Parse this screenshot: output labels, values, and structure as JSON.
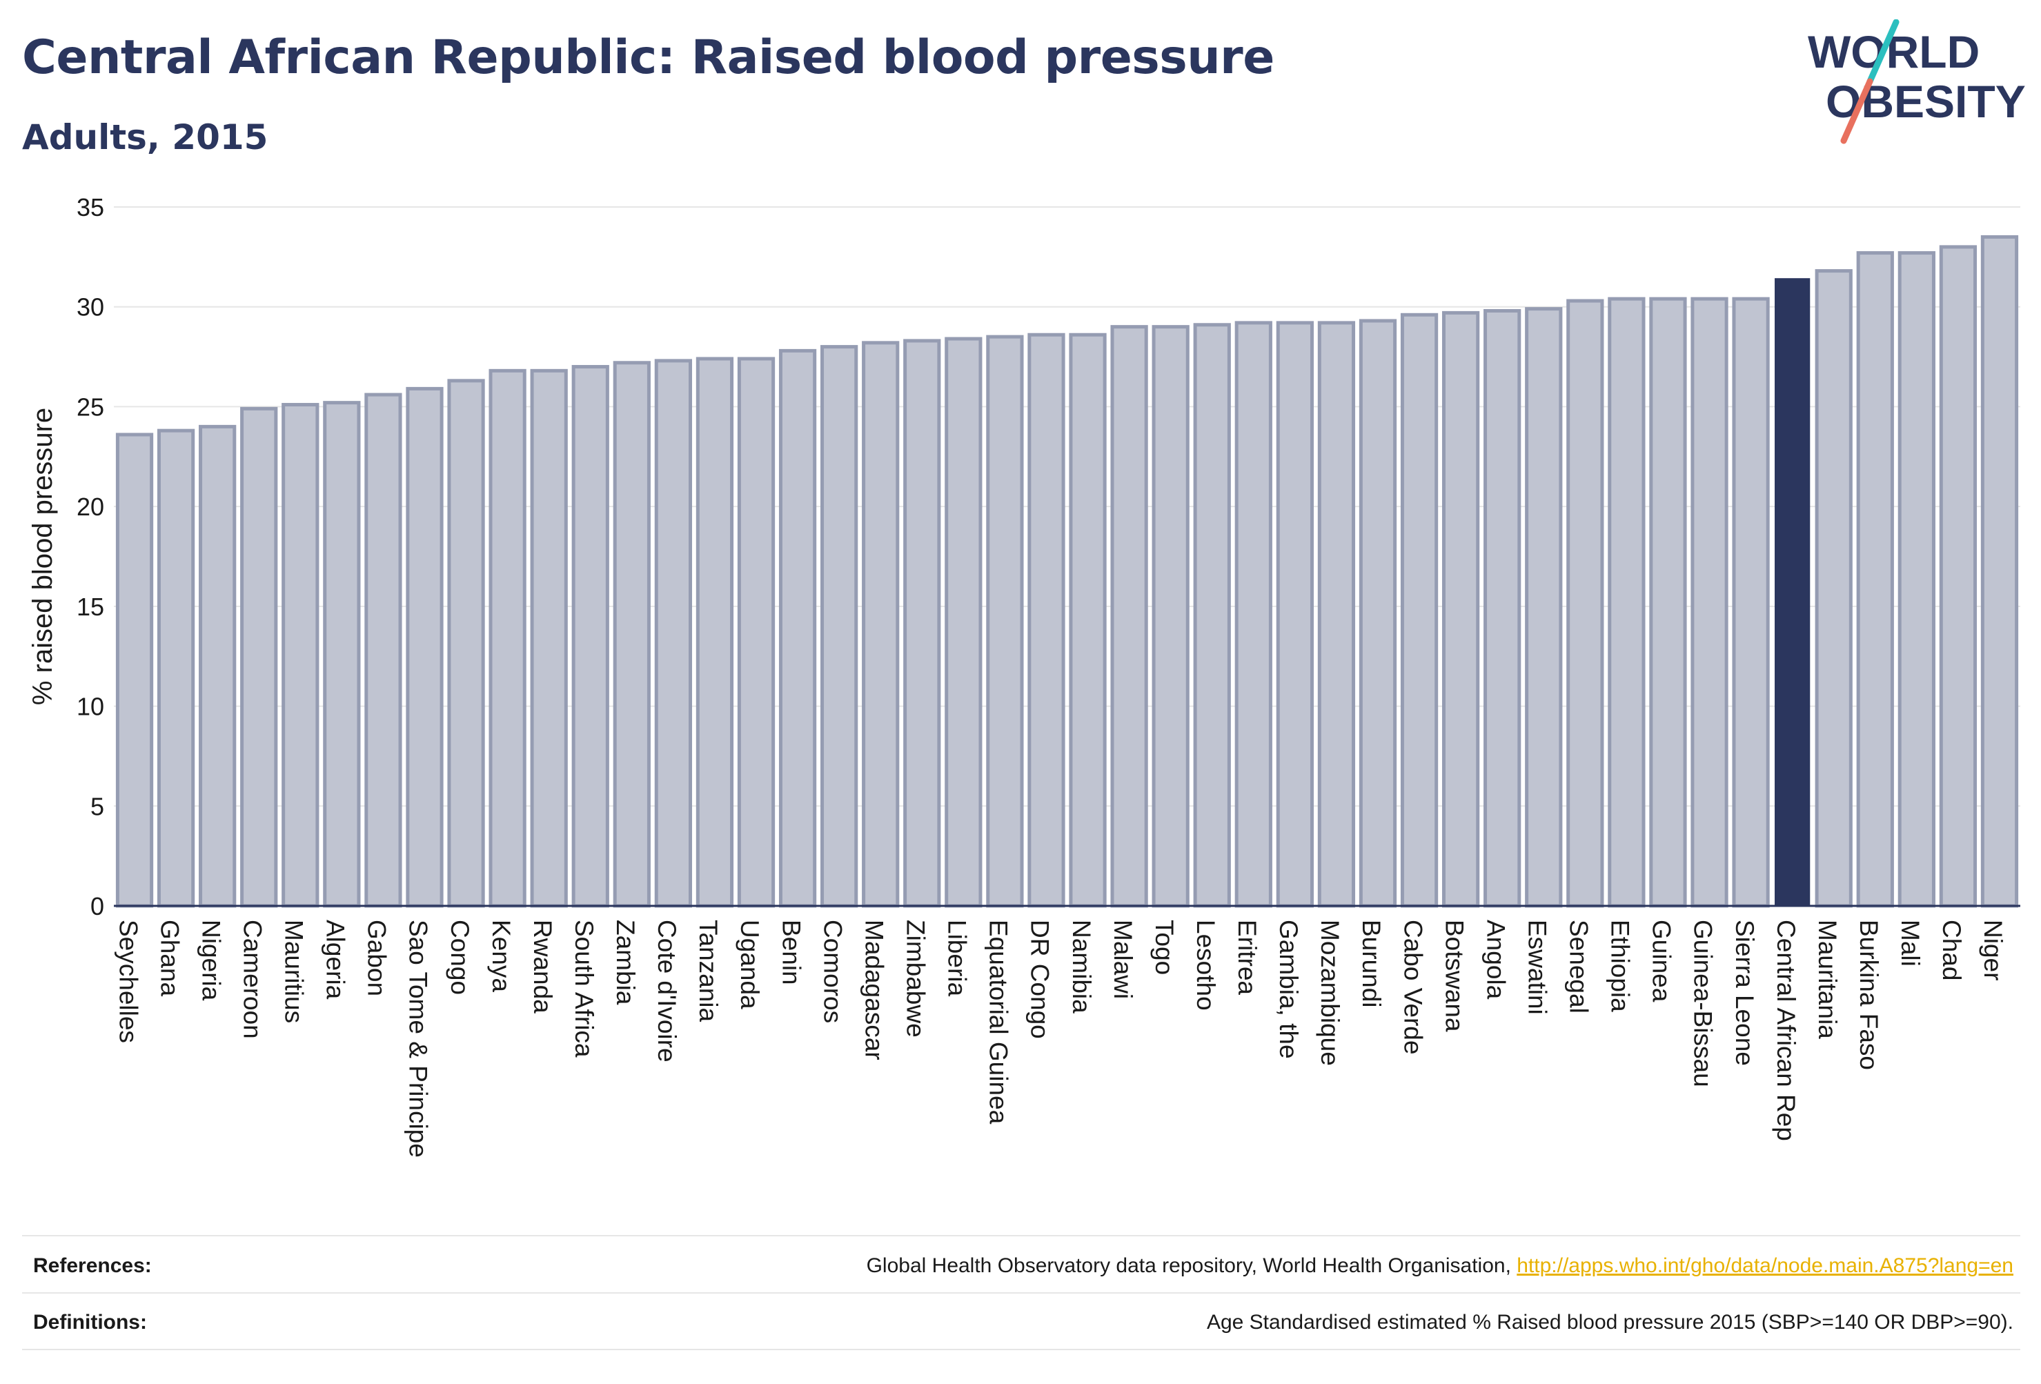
{
  "header": {
    "title": "Central African Republic: Raised blood pressure",
    "subtitle": "Adults, 2015"
  },
  "logo": {
    "line1": "WORLD",
    "line2": "OBESITY",
    "colors": {
      "text": "#2b365e",
      "slash_teal": "#2bbfbf",
      "slash_coral": "#e8705e"
    }
  },
  "chart_data": {
    "type": "bar",
    "ylabel": "% raised blood pressure",
    "ylim": [
      0,
      35
    ],
    "yticks": [
      0,
      5,
      10,
      15,
      20,
      25,
      30,
      35
    ],
    "grid": true,
    "highlight": "Central African Rep",
    "colors": {
      "bar": "#c0c4d1",
      "bar_edge": "#959cb2",
      "highlight": "#2b365e",
      "grid": "#e6e6e6",
      "axis": "#2b365e"
    },
    "categories": [
      "Seychelles",
      "Ghana",
      "Nigeria",
      "Cameroon",
      "Mauritius",
      "Algeria",
      "Gabon",
      "Sao Tome & Principe",
      "Congo",
      "Kenya",
      "Rwanda",
      "South Africa",
      "Zambia",
      "Cote d'Ivoire",
      "Tanzania",
      "Uganda",
      "Benin",
      "Comoros",
      "Madagascar",
      "Zimbabwe",
      "Liberia",
      "Equatorial Guinea",
      "DR Congo",
      "Namibia",
      "Malawi",
      "Togo",
      "Lesotho",
      "Eritrea",
      "Gambia, the",
      "Mozambique",
      "Burundi",
      "Cabo Verde",
      "Botswana",
      "Angola",
      "Eswatini",
      "Senegal",
      "Ethiopia",
      "Guinea",
      "Guinea-Bissau",
      "Sierra Leone",
      "Central African Rep",
      "Mauritania",
      "Burkina Faso",
      "Mali",
      "Chad",
      "Niger"
    ],
    "values": [
      23.6,
      23.8,
      24.0,
      24.9,
      25.1,
      25.2,
      25.6,
      25.9,
      26.3,
      26.8,
      26.8,
      27.0,
      27.2,
      27.3,
      27.4,
      27.4,
      27.8,
      28.0,
      28.2,
      28.3,
      28.4,
      28.5,
      28.6,
      28.6,
      29.0,
      29.0,
      29.1,
      29.2,
      29.2,
      29.2,
      29.3,
      29.6,
      29.7,
      29.8,
      29.9,
      30.3,
      30.4,
      30.4,
      30.4,
      30.4,
      31.4,
      31.8,
      32.7,
      32.7,
      33.0,
      33.5
    ]
  },
  "footer": {
    "references_label": "References:",
    "references_text": "Global Health Observatory data repository, World Health Organisation, ",
    "references_link": "http://apps.who.int/gho/data/node.main.A875?lang=en",
    "definitions_label": "Definitions:",
    "definitions_text": "Age Standardised estimated % Raised blood pressure 2015 (SBP>=140 OR DBP>=90)."
  }
}
